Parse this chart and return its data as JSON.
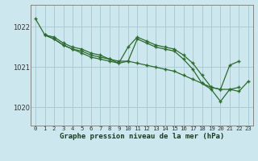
{
  "xlabel": "Graphe pression niveau de la mer (hPa)",
  "bg_color": "#cce8ee",
  "grid_color": "#aaccd4",
  "line_color": "#2d6a2d",
  "ylim": [
    1019.55,
    1022.55
  ],
  "xlim": [
    -0.5,
    23.5
  ],
  "yticks": [
    1020,
    1021,
    1022
  ],
  "xticks": [
    0,
    1,
    2,
    3,
    4,
    5,
    6,
    7,
    8,
    9,
    10,
    11,
    12,
    13,
    14,
    15,
    16,
    17,
    18,
    19,
    20,
    21,
    22,
    23
  ],
  "series": [
    [
      1022.2,
      1021.8,
      1021.75,
      1021.6,
      1021.5,
      1021.45,
      1021.35,
      1021.3,
      1021.2,
      1021.15,
      1021.15,
      1021.1,
      1021.05,
      1021.0,
      1020.95,
      1020.9,
      1020.8,
      1020.7,
      1020.6,
      1020.5,
      1020.45,
      1020.45,
      1020.4,
      1020.65
    ],
    [
      null,
      1021.8,
      1021.7,
      1021.55,
      1021.45,
      1021.4,
      1021.3,
      1021.25,
      1021.2,
      1021.1,
      1021.15,
      1021.7,
      1021.6,
      1021.5,
      1021.45,
      1021.4,
      1021.2,
      1020.95,
      1020.6,
      1020.45,
      1020.15,
      1020.45,
      1020.5,
      null
    ],
    [
      null,
      1021.8,
      1021.7,
      1021.55,
      1021.45,
      1021.35,
      1021.25,
      1021.2,
      1021.15,
      1021.1,
      1021.5,
      1021.75,
      1021.65,
      1021.55,
      1021.5,
      1021.45,
      1021.3,
      1021.1,
      1020.8,
      1020.5,
      1020.45,
      1021.05,
      1021.15,
      null
    ]
  ]
}
